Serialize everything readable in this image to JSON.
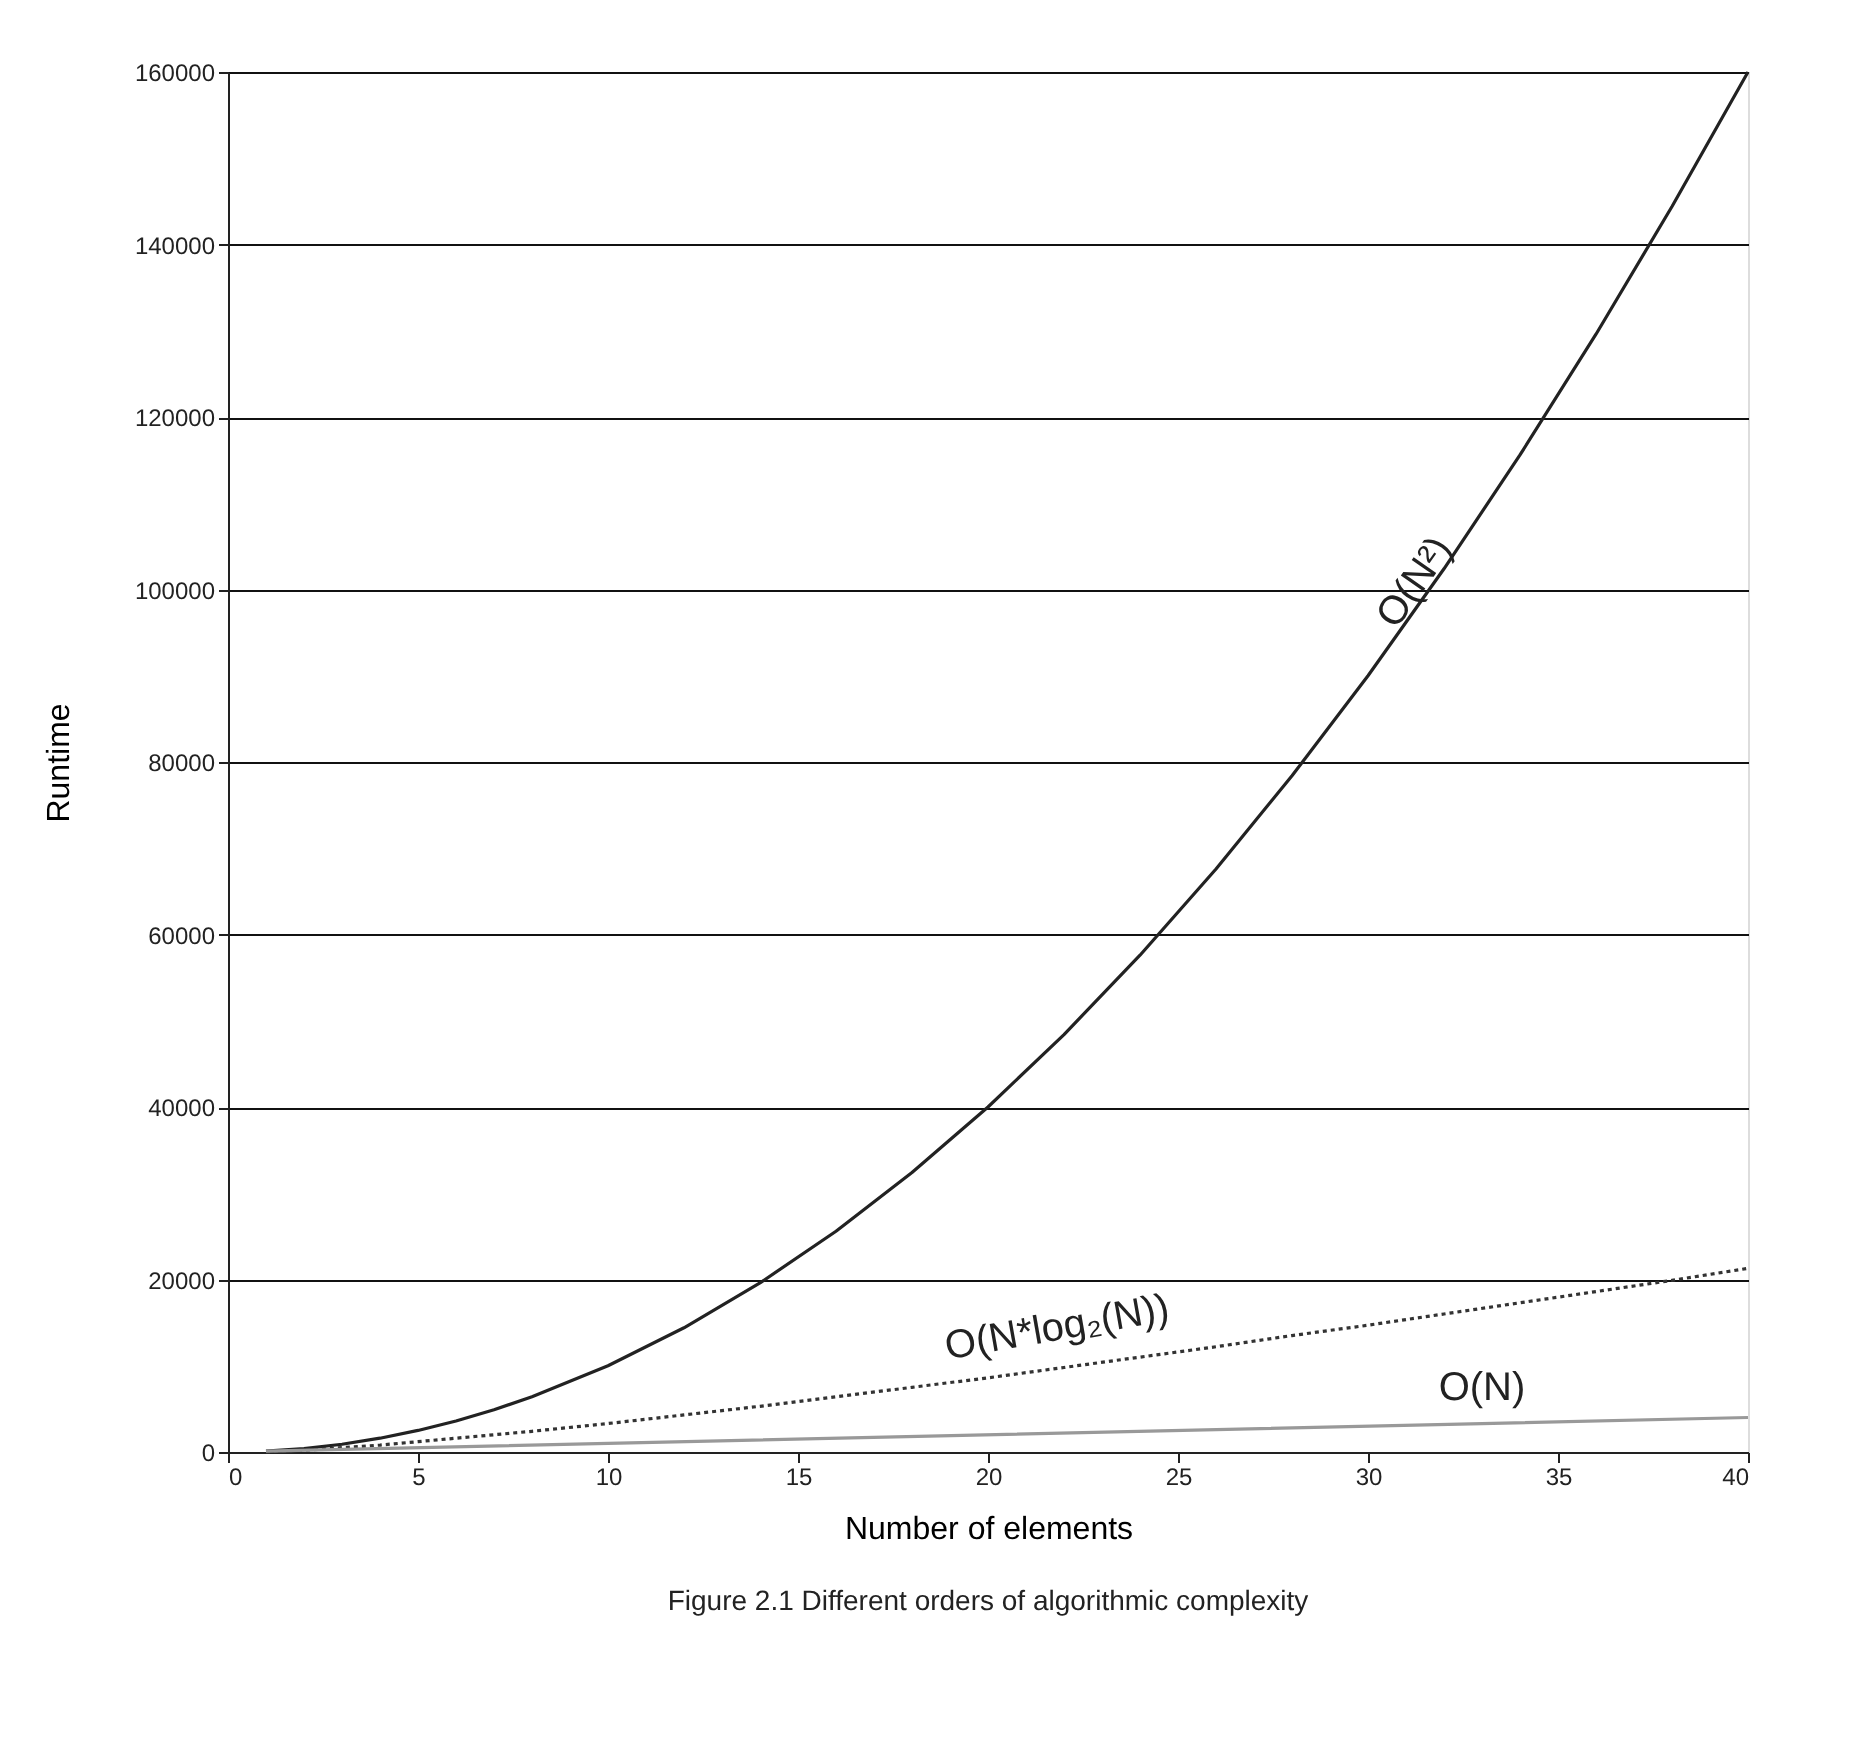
{
  "chart_data": {
    "type": "line",
    "xlabel": "Number of elements",
    "ylabel": "Runtime",
    "xlim": [
      0,
      40
    ],
    "xticks": [
      0,
      5,
      10,
      15,
      20,
      25,
      30,
      35,
      40
    ],
    "ylim": [
      0,
      160000
    ],
    "yticks": [
      0,
      20000,
      40000,
      60000,
      80000,
      100000,
      120000,
      140000,
      160000
    ],
    "grid": "y",
    "marker": "none",
    "series": [
      {
        "name": "O(N²)",
        "color": "#222222",
        "line_style": "solid",
        "x": [
          1,
          2,
          3,
          4,
          5,
          6,
          7,
          8,
          10,
          12,
          14,
          16,
          18,
          20,
          22,
          24,
          26,
          28,
          30,
          32,
          34,
          36,
          38,
          40
        ],
        "values": [
          100,
          400,
          900,
          1600,
          2500,
          3600,
          4900,
          6400,
          10000,
          14400,
          19600,
          25600,
          32400,
          40000,
          48400,
          57600,
          67600,
          78400,
          90000,
          102400,
          115600,
          129600,
          144400,
          160000
        ]
      },
      {
        "name": "O(N*log₂(N))",
        "color": "#333333",
        "line_style": "dotted",
        "x": [
          1,
          2,
          3,
          4,
          5,
          6,
          7,
          8,
          10,
          12,
          14,
          16,
          18,
          20,
          22,
          24,
          26,
          28,
          30,
          32,
          34,
          36,
          38,
          40
        ],
        "values": [
          0,
          200,
          500,
          800,
          1200,
          1600,
          2000,
          2400,
          3300,
          4300,
          5300,
          6400,
          7500,
          8600,
          9800,
          11000,
          12200,
          13500,
          14700,
          16000,
          17300,
          18600,
          19900,
          21300
        ]
      },
      {
        "name": "O(N)",
        "color": "#999999",
        "line_style": "solid",
        "x": [
          1,
          33,
          40
        ],
        "values": [
          100,
          3300,
          4000
        ]
      }
    ],
    "annotations": [
      "Figure 2.1  Different orders of algorithmic complexity"
    ]
  }
}
